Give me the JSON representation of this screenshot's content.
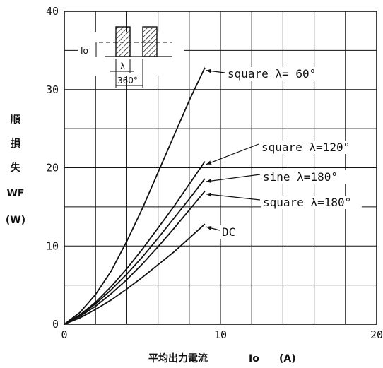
{
  "chart_data": {
    "type": "line",
    "xlabel": "平均出力電流 Io (A)",
    "xlabel_text": "平均出力電流",
    "xlabel_symbol": "Io",
    "xlabel_unit": "(A)",
    "ylabel_lines": [
      "順",
      "損",
      "失",
      "WF",
      "(W)"
    ],
    "xlim": [
      0,
      20
    ],
    "ylim": [
      0,
      40
    ],
    "x_ticks": [
      "0",
      "10",
      "20"
    ],
    "y_ticks": [
      "0",
      "10",
      "20",
      "30",
      "40"
    ],
    "x_minor_step": 2,
    "y_minor_step": 5,
    "grid": true,
    "series": [
      {
        "name": "square λ= 60°",
        "x": [
          0,
          1,
          2,
          3,
          4,
          5,
          6,
          7,
          8,
          9
        ],
        "y": [
          0,
          1.5,
          3.8,
          6.8,
          10.6,
          14.8,
          19.4,
          24.0,
          28.6,
          32.8
        ]
      },
      {
        "name": "square λ=120°",
        "x": [
          0,
          1,
          2,
          3,
          4,
          5,
          6,
          7,
          8,
          9
        ],
        "y": [
          0,
          1.2,
          2.8,
          4.8,
          7.1,
          9.6,
          12.3,
          15.0,
          17.9,
          20.8
        ]
      },
      {
        "name": "sine λ=180°",
        "x": [
          0,
          1,
          2,
          3,
          4,
          5,
          6,
          7,
          8,
          9
        ],
        "y": [
          0,
          1.1,
          2.6,
          4.4,
          6.4,
          8.6,
          11.0,
          13.5,
          16.0,
          18.6
        ]
      },
      {
        "name": "square λ=180°",
        "x": [
          0,
          1,
          2,
          3,
          4,
          5,
          6,
          7,
          8,
          9
        ],
        "y": [
          0,
          1.0,
          2.3,
          3.9,
          5.7,
          7.7,
          9.9,
          12.2,
          14.6,
          17.0
        ]
      },
      {
        "name": "DC",
        "x": [
          0,
          1,
          2,
          3,
          4,
          5,
          6,
          7,
          8,
          9
        ],
        "y": [
          0,
          0.8,
          1.9,
          3.1,
          4.5,
          6.0,
          7.6,
          9.2,
          11.0,
          12.8
        ]
      }
    ],
    "labels": [
      {
        "text": "square λ= 60°"
      },
      {
        "text": "square λ=120°"
      },
      {
        "text": "sine λ=180°"
      },
      {
        "text": "square λ=180°"
      },
      {
        "text": "DC"
      }
    ],
    "inset": {
      "io_label": "Io",
      "lambda_label": "λ",
      "period_label": "360°"
    }
  }
}
